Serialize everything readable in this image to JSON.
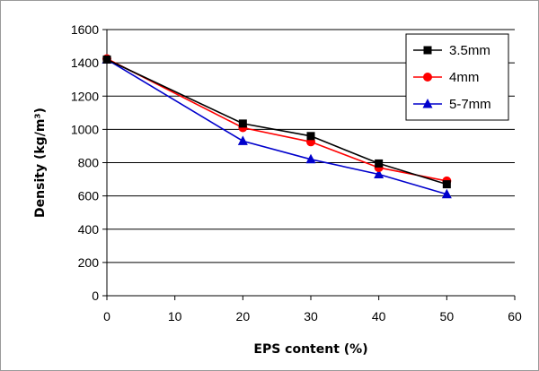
{
  "chart_data": {
    "type": "line",
    "title": "",
    "xlabel": "EPS content (%)",
    "ylabel": "Density (kg/m³)",
    "xlim": [
      0,
      60
    ],
    "ylim": [
      0,
      1600
    ],
    "xticks": [
      "0",
      "10",
      "20",
      "30",
      "40",
      "50",
      "60"
    ],
    "yticks": [
      "0",
      "200",
      "400",
      "600",
      "800",
      "1000",
      "1200",
      "1400",
      "1600"
    ],
    "grid": "horizontal",
    "legend_position": "top-right",
    "series": [
      {
        "name": "3.5mm",
        "color": "#000000",
        "marker": "square",
        "x": [
          0,
          20,
          30,
          40,
          50
        ],
        "y": [
          1420,
          1035,
          960,
          795,
          670
        ]
      },
      {
        "name": "4mm",
        "color": "#ff0000",
        "marker": "circle",
        "x": [
          0,
          20,
          30,
          40,
          50
        ],
        "y": [
          1425,
          1010,
          925,
          770,
          690
        ]
      },
      {
        "name": "5-7mm",
        "color": "#0000cc",
        "marker": "triangle",
        "x": [
          0,
          20,
          30,
          40,
          50
        ],
        "y": [
          1420,
          930,
          820,
          730,
          610
        ]
      }
    ]
  }
}
